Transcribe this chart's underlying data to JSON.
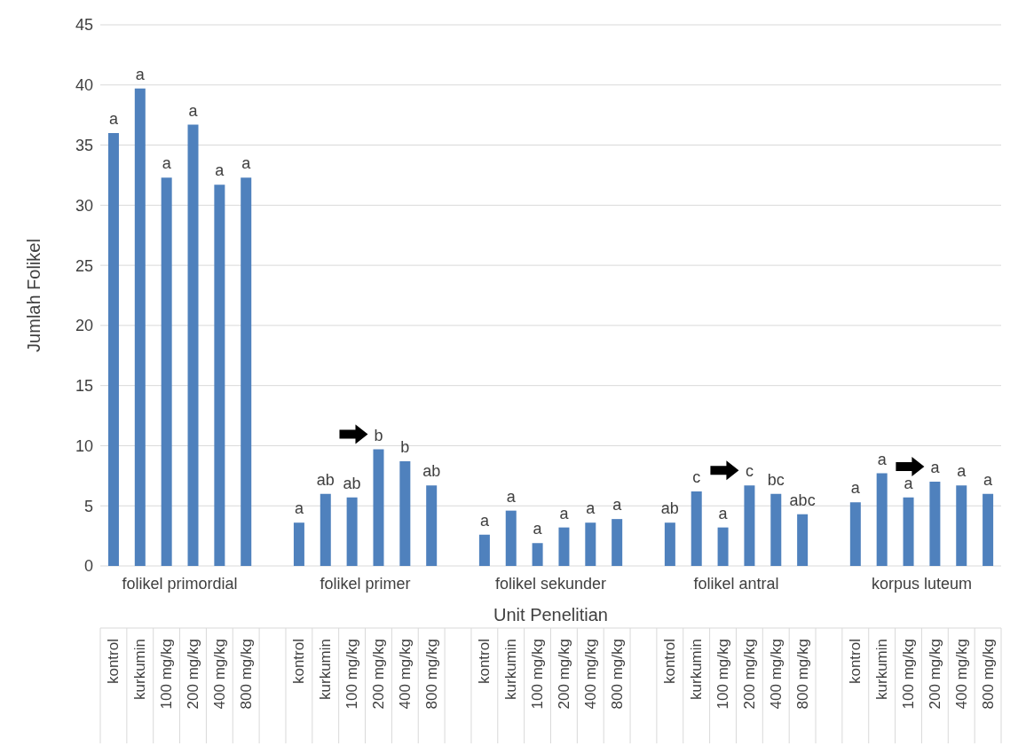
{
  "chart_data": {
    "type": "bar",
    "xlabel": "Unit Penelitian",
    "ylabel": "Jumlah Folikel",
    "categories": [
      "kontrol",
      "kurkumin",
      "100 mg/kg",
      "200 mg/kg",
      "400 mg/kg",
      "800 mg/kg",
      null,
      "kontrol",
      "kurkumin",
      "100 mg/kg",
      "200 mg/kg",
      "400 mg/kg",
      "800 mg/kg",
      null,
      "kontrol",
      "kurkumin",
      "100 mg/kg",
      "200 mg/kg",
      "400 mg/kg",
      "800 mg/kg",
      null,
      "kontrol",
      "kurkumin",
      "100 mg/kg",
      "200 mg/kg",
      "400 mg/kg",
      "800 mg/kg",
      null,
      "kontrol",
      "kurkumin",
      "100 mg/kg",
      "200 mg/kg",
      "400 mg/kg",
      "800 mg/kg"
    ],
    "values": [
      36.0,
      39.7,
      32.3,
      36.7,
      31.7,
      32.3,
      null,
      3.6,
      6.0,
      5.7,
      9.7,
      8.7,
      6.7,
      null,
      2.6,
      4.6,
      1.9,
      3.2,
      3.6,
      3.9,
      null,
      3.6,
      6.2,
      3.2,
      6.7,
      6.0,
      4.3,
      null,
      5.3,
      7.7,
      5.7,
      7.0,
      6.7,
      6.0
    ],
    "value_labels": [
      "a",
      "a",
      "a",
      "a",
      "a",
      "a",
      null,
      "a",
      "ab",
      "ab",
      "b",
      "b",
      "ab",
      null,
      "a",
      "a",
      "a",
      "a",
      "a",
      "a",
      null,
      "ab",
      "c",
      "a",
      "c",
      "bc",
      "abc",
      null,
      "a",
      "a",
      "a",
      "a",
      "a",
      "a"
    ],
    "color": "#4f81bd",
    "annotations": [
      "folikel primordial",
      "folikel primer",
      "folikel sekunder",
      "folikel antral",
      "korpus luteum"
    ],
    "ylim": [
      0,
      45
    ],
    "yticks": [
      0,
      5,
      10,
      15,
      20,
      25,
      30,
      35,
      40,
      45
    ],
    "grid": "y",
    "legend": false
  }
}
